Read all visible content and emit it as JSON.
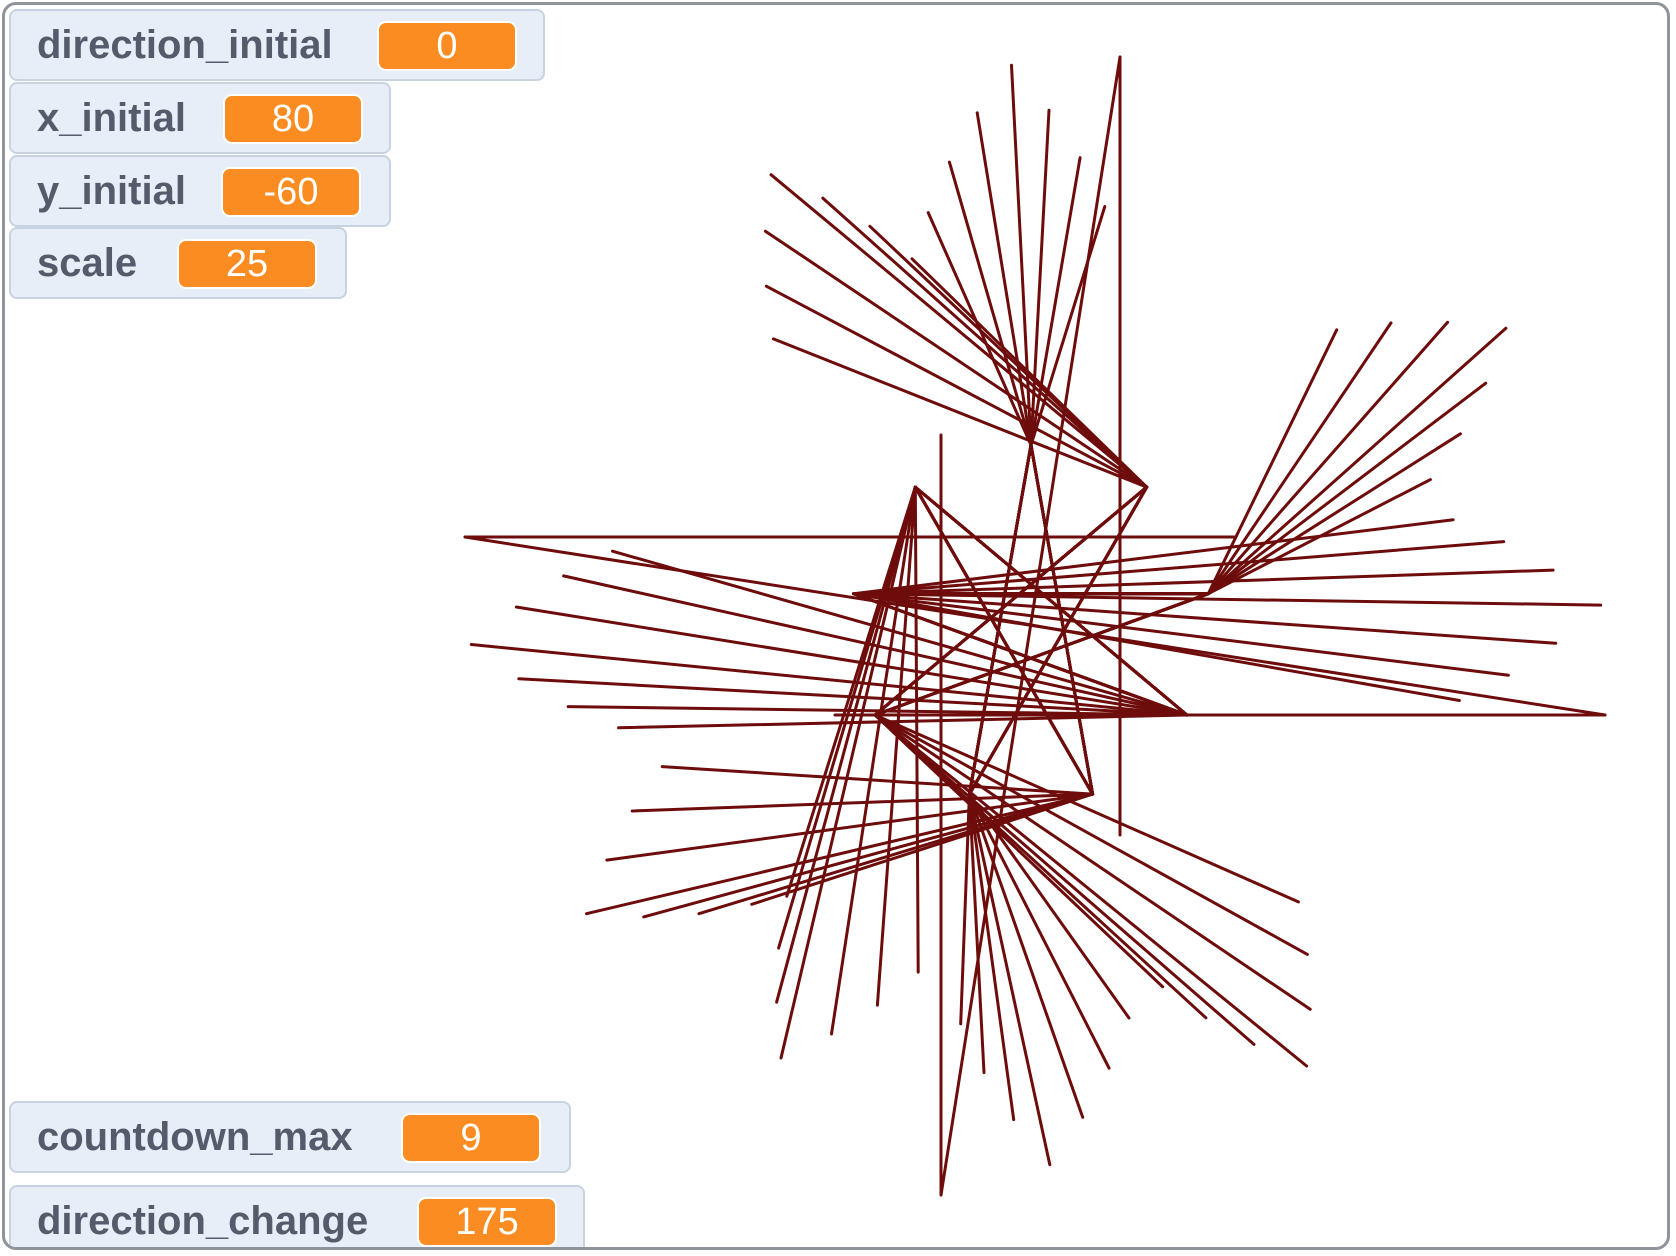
{
  "stage": {
    "pen_color": "#6e0c0c",
    "background": "#ffffff"
  },
  "monitors": [
    {
      "name": "direction_initial",
      "value": "0"
    },
    {
      "name": "x_initial",
      "value": "80"
    },
    {
      "name": "y_initial",
      "value": "-60"
    },
    {
      "name": "scale",
      "value": "25"
    },
    {
      "name": "countdown_max",
      "value": "9"
    },
    {
      "name": "direction_change",
      "value": "175"
    }
  ]
}
